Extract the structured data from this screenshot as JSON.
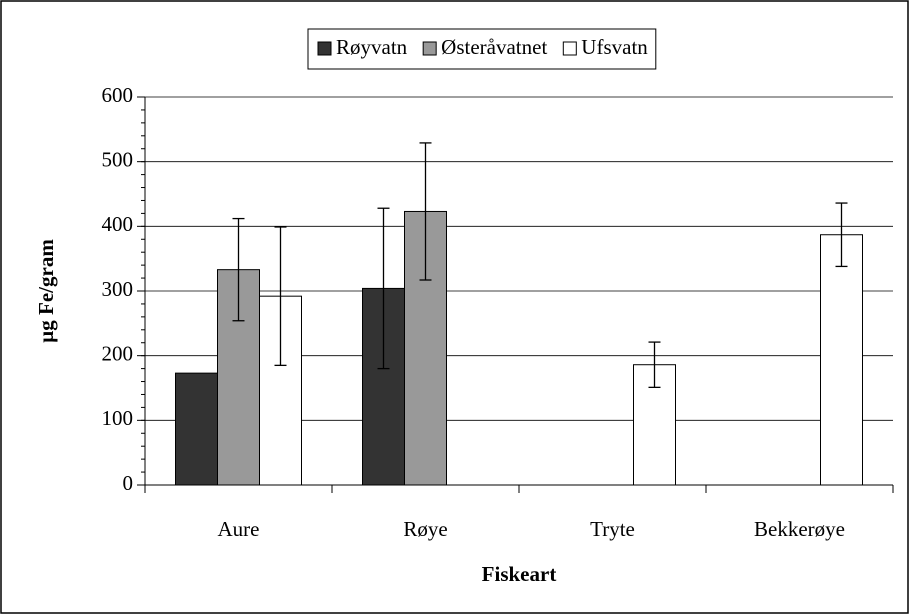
{
  "chart_data": {
    "type": "bar",
    "x_label": "Fiskeart",
    "y_label": "µg Fe/gram",
    "categories": [
      "Aure",
      "Røye",
      "Tryte",
      "Bekkerøye"
    ],
    "series": [
      {
        "name": "Røyvatn",
        "color": "#333333",
        "values": [
          173,
          304,
          null,
          null
        ],
        "errors": [
          null,
          124,
          null,
          null
        ]
      },
      {
        "name": "Østeråvatnet",
        "color": "#999999",
        "values": [
          333,
          423,
          null,
          null
        ],
        "errors": [
          79,
          106,
          null,
          null
        ]
      },
      {
        "name": "Ufsvatn",
        "color": "#ffffff",
        "values": [
          292,
          null,
          186,
          387
        ],
        "errors": [
          107,
          null,
          35,
          49
        ]
      }
    ],
    "ylim": [
      0,
      600
    ],
    "yticks": [
      0,
      100,
      200,
      300,
      400,
      500,
      600
    ],
    "grid": true
  }
}
